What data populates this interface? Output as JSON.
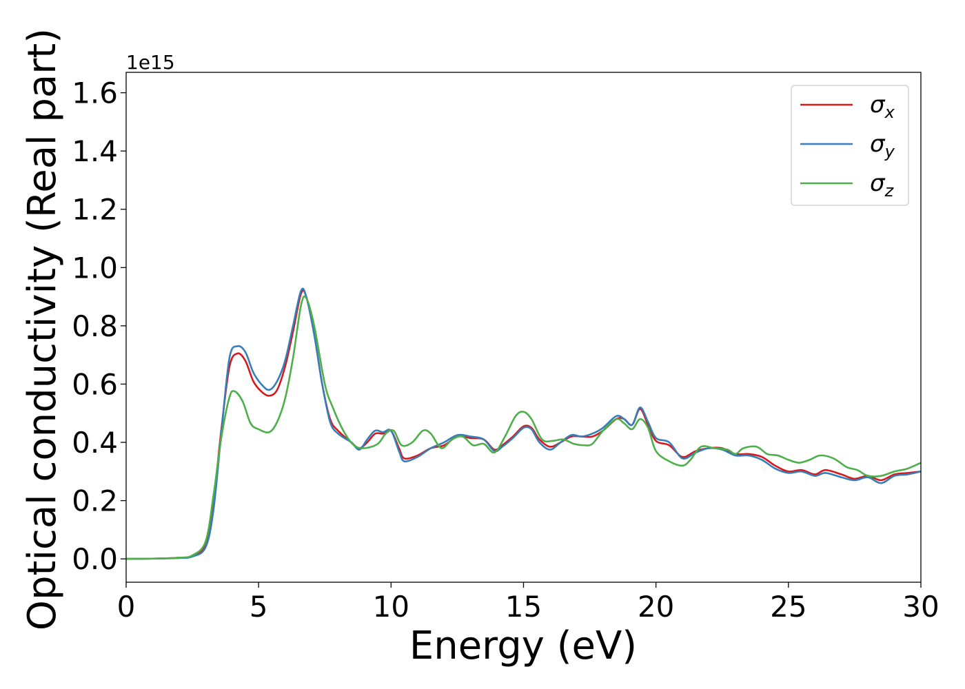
{
  "chart_data": {
    "type": "line",
    "xlabel": "Energy (eV)",
    "ylabel": "Optical conductivity (Real part)",
    "y_offset_label": "1e15",
    "xlim": [
      0,
      30
    ],
    "ylim": [
      -0.08,
      1.67
    ],
    "xticks": [
      0,
      5,
      10,
      15,
      20,
      25,
      30
    ],
    "xtick_labels": [
      "0",
      "5",
      "10",
      "15",
      "20",
      "25",
      "30"
    ],
    "yticks": [
      0.0,
      0.2,
      0.4,
      0.6,
      0.8,
      1.0,
      1.2,
      1.4,
      1.6
    ],
    "ytick_labels": [
      "0.0",
      "0.2",
      "0.4",
      "0.6",
      "0.8",
      "1.0",
      "1.2",
      "1.4",
      "1.6"
    ],
    "grid": false,
    "legend_position": "top-right",
    "series": [
      {
        "name": "σx",
        "color": "#d7191c",
        "points": [
          [
            0,
            0
          ],
          [
            1,
            0.001
          ],
          [
            2,
            0.004
          ],
          [
            2.5,
            0.01
          ],
          [
            3,
            0.05
          ],
          [
            3.3,
            0.2
          ],
          [
            3.6,
            0.45
          ],
          [
            3.9,
            0.66
          ],
          [
            4.2,
            0.705
          ],
          [
            4.5,
            0.68
          ],
          [
            4.8,
            0.61
          ],
          [
            5.1,
            0.575
          ],
          [
            5.4,
            0.56
          ],
          [
            5.7,
            0.58
          ],
          [
            6.0,
            0.66
          ],
          [
            6.3,
            0.78
          ],
          [
            6.6,
            0.91
          ],
          [
            6.8,
            0.9
          ],
          [
            7.1,
            0.77
          ],
          [
            7.4,
            0.6
          ],
          [
            7.7,
            0.48
          ],
          [
            8.0,
            0.44
          ],
          [
            8.5,
            0.4
          ],
          [
            8.8,
            0.38
          ],
          [
            9.1,
            0.4
          ],
          [
            9.4,
            0.43
          ],
          [
            9.7,
            0.43
          ],
          [
            10.0,
            0.44
          ],
          [
            10.3,
            0.38
          ],
          [
            10.5,
            0.345
          ],
          [
            11.0,
            0.355
          ],
          [
            11.5,
            0.38
          ],
          [
            12.0,
            0.39
          ],
          [
            12.5,
            0.42
          ],
          [
            13.0,
            0.415
          ],
          [
            13.5,
            0.41
          ],
          [
            13.9,
            0.375
          ],
          [
            14.2,
            0.39
          ],
          [
            14.6,
            0.42
          ],
          [
            15.0,
            0.455
          ],
          [
            15.3,
            0.45
          ],
          [
            15.6,
            0.41
          ],
          [
            16.0,
            0.385
          ],
          [
            16.4,
            0.4
          ],
          [
            16.8,
            0.42
          ],
          [
            17.2,
            0.42
          ],
          [
            17.6,
            0.42
          ],
          [
            18.0,
            0.44
          ],
          [
            18.5,
            0.48
          ],
          [
            18.8,
            0.48
          ],
          [
            19.1,
            0.46
          ],
          [
            19.4,
            0.515
          ],
          [
            19.7,
            0.46
          ],
          [
            20.0,
            0.405
          ],
          [
            20.5,
            0.39
          ],
          [
            21.0,
            0.35
          ],
          [
            21.5,
            0.37
          ],
          [
            22.0,
            0.38
          ],
          [
            22.5,
            0.38
          ],
          [
            23.0,
            0.36
          ],
          [
            23.5,
            0.36
          ],
          [
            24.0,
            0.35
          ],
          [
            24.5,
            0.32
          ],
          [
            25.0,
            0.3
          ],
          [
            25.5,
            0.305
          ],
          [
            26.0,
            0.29
          ],
          [
            26.4,
            0.305
          ],
          [
            27.0,
            0.29
          ],
          [
            27.5,
            0.275
          ],
          [
            28.0,
            0.285
          ],
          [
            28.5,
            0.27
          ],
          [
            29.0,
            0.29
          ],
          [
            29.5,
            0.295
          ],
          [
            30.0,
            0.3
          ]
        ]
      },
      {
        "name": "σy",
        "color": "#377eb8",
        "points": [
          [
            0,
            0
          ],
          [
            1,
            0.001
          ],
          [
            2,
            0.003
          ],
          [
            2.5,
            0.008
          ],
          [
            3,
            0.04
          ],
          [
            3.3,
            0.17
          ],
          [
            3.6,
            0.44
          ],
          [
            3.9,
            0.69
          ],
          [
            4.2,
            0.73
          ],
          [
            4.5,
            0.71
          ],
          [
            4.8,
            0.64
          ],
          [
            5.1,
            0.6
          ],
          [
            5.4,
            0.58
          ],
          [
            5.7,
            0.61
          ],
          [
            6.0,
            0.68
          ],
          [
            6.3,
            0.8
          ],
          [
            6.6,
            0.92
          ],
          [
            6.8,
            0.9
          ],
          [
            7.1,
            0.77
          ],
          [
            7.4,
            0.6
          ],
          [
            7.7,
            0.47
          ],
          [
            8.0,
            0.43
          ],
          [
            8.5,
            0.4
          ],
          [
            8.8,
            0.375
          ],
          [
            9.1,
            0.41
          ],
          [
            9.4,
            0.44
          ],
          [
            9.7,
            0.435
          ],
          [
            10.0,
            0.44
          ],
          [
            10.3,
            0.37
          ],
          [
            10.5,
            0.335
          ],
          [
            11.0,
            0.35
          ],
          [
            11.5,
            0.38
          ],
          [
            12.0,
            0.4
          ],
          [
            12.5,
            0.425
          ],
          [
            13.0,
            0.42
          ],
          [
            13.5,
            0.41
          ],
          [
            13.9,
            0.37
          ],
          [
            14.2,
            0.385
          ],
          [
            14.6,
            0.415
          ],
          [
            15.0,
            0.45
          ],
          [
            15.3,
            0.445
          ],
          [
            15.6,
            0.4
          ],
          [
            16.0,
            0.375
          ],
          [
            16.4,
            0.4
          ],
          [
            16.8,
            0.425
          ],
          [
            17.2,
            0.42
          ],
          [
            17.6,
            0.43
          ],
          [
            18.0,
            0.45
          ],
          [
            18.5,
            0.49
          ],
          [
            18.8,
            0.48
          ],
          [
            19.1,
            0.46
          ],
          [
            19.4,
            0.52
          ],
          [
            19.7,
            0.47
          ],
          [
            20.0,
            0.415
          ],
          [
            20.5,
            0.4
          ],
          [
            21.0,
            0.345
          ],
          [
            21.5,
            0.365
          ],
          [
            22.0,
            0.38
          ],
          [
            22.5,
            0.375
          ],
          [
            23.0,
            0.355
          ],
          [
            23.5,
            0.355
          ],
          [
            24.0,
            0.34
          ],
          [
            24.5,
            0.31
          ],
          [
            25.0,
            0.295
          ],
          [
            25.5,
            0.3
          ],
          [
            26.0,
            0.285
          ],
          [
            26.4,
            0.295
          ],
          [
            27.0,
            0.28
          ],
          [
            27.5,
            0.27
          ],
          [
            28.0,
            0.28
          ],
          [
            28.5,
            0.26
          ],
          [
            29.0,
            0.285
          ],
          [
            29.5,
            0.29
          ],
          [
            30.0,
            0.3
          ]
        ]
      },
      {
        "name": "σz",
        "color": "#4daf4a",
        "points": [
          [
            0,
            0
          ],
          [
            1,
            0.001
          ],
          [
            2,
            0.004
          ],
          [
            2.5,
            0.012
          ],
          [
            3,
            0.06
          ],
          [
            3.3,
            0.22
          ],
          [
            3.6,
            0.42
          ],
          [
            3.9,
            0.555
          ],
          [
            4.1,
            0.575
          ],
          [
            4.4,
            0.54
          ],
          [
            4.7,
            0.465
          ],
          [
            5.0,
            0.445
          ],
          [
            5.4,
            0.435
          ],
          [
            5.7,
            0.47
          ],
          [
            6.0,
            0.55
          ],
          [
            6.3,
            0.69
          ],
          [
            6.6,
            0.87
          ],
          [
            6.8,
            0.895
          ],
          [
            7.1,
            0.8
          ],
          [
            7.5,
            0.6
          ],
          [
            7.8,
            0.52
          ],
          [
            8.2,
            0.44
          ],
          [
            8.6,
            0.39
          ],
          [
            9.0,
            0.38
          ],
          [
            9.5,
            0.395
          ],
          [
            9.8,
            0.43
          ],
          [
            10.1,
            0.44
          ],
          [
            10.4,
            0.39
          ],
          [
            10.8,
            0.4
          ],
          [
            11.2,
            0.44
          ],
          [
            11.5,
            0.43
          ],
          [
            11.9,
            0.38
          ],
          [
            12.3,
            0.41
          ],
          [
            12.7,
            0.42
          ],
          [
            13.1,
            0.39
          ],
          [
            13.5,
            0.395
          ],
          [
            13.9,
            0.365
          ],
          [
            14.3,
            0.42
          ],
          [
            14.7,
            0.49
          ],
          [
            15.0,
            0.505
          ],
          [
            15.3,
            0.48
          ],
          [
            15.7,
            0.41
          ],
          [
            16.1,
            0.405
          ],
          [
            16.5,
            0.41
          ],
          [
            16.9,
            0.395
          ],
          [
            17.3,
            0.39
          ],
          [
            17.6,
            0.395
          ],
          [
            18.0,
            0.44
          ],
          [
            18.5,
            0.48
          ],
          [
            18.8,
            0.465
          ],
          [
            19.1,
            0.445
          ],
          [
            19.4,
            0.48
          ],
          [
            19.7,
            0.45
          ],
          [
            20.0,
            0.37
          ],
          [
            20.5,
            0.335
          ],
          [
            21.0,
            0.32
          ],
          [
            21.3,
            0.34
          ],
          [
            21.7,
            0.385
          ],
          [
            22.2,
            0.38
          ],
          [
            22.7,
            0.375
          ],
          [
            23.0,
            0.36
          ],
          [
            23.3,
            0.38
          ],
          [
            23.8,
            0.385
          ],
          [
            24.2,
            0.36
          ],
          [
            24.6,
            0.355
          ],
          [
            25.0,
            0.34
          ],
          [
            25.4,
            0.33
          ],
          [
            25.8,
            0.34
          ],
          [
            26.2,
            0.355
          ],
          [
            26.7,
            0.345
          ],
          [
            27.2,
            0.315
          ],
          [
            27.6,
            0.305
          ],
          [
            28.0,
            0.285
          ],
          [
            28.5,
            0.285
          ],
          [
            29.0,
            0.3
          ],
          [
            29.5,
            0.31
          ],
          [
            30.0,
            0.33
          ]
        ]
      }
    ]
  }
}
